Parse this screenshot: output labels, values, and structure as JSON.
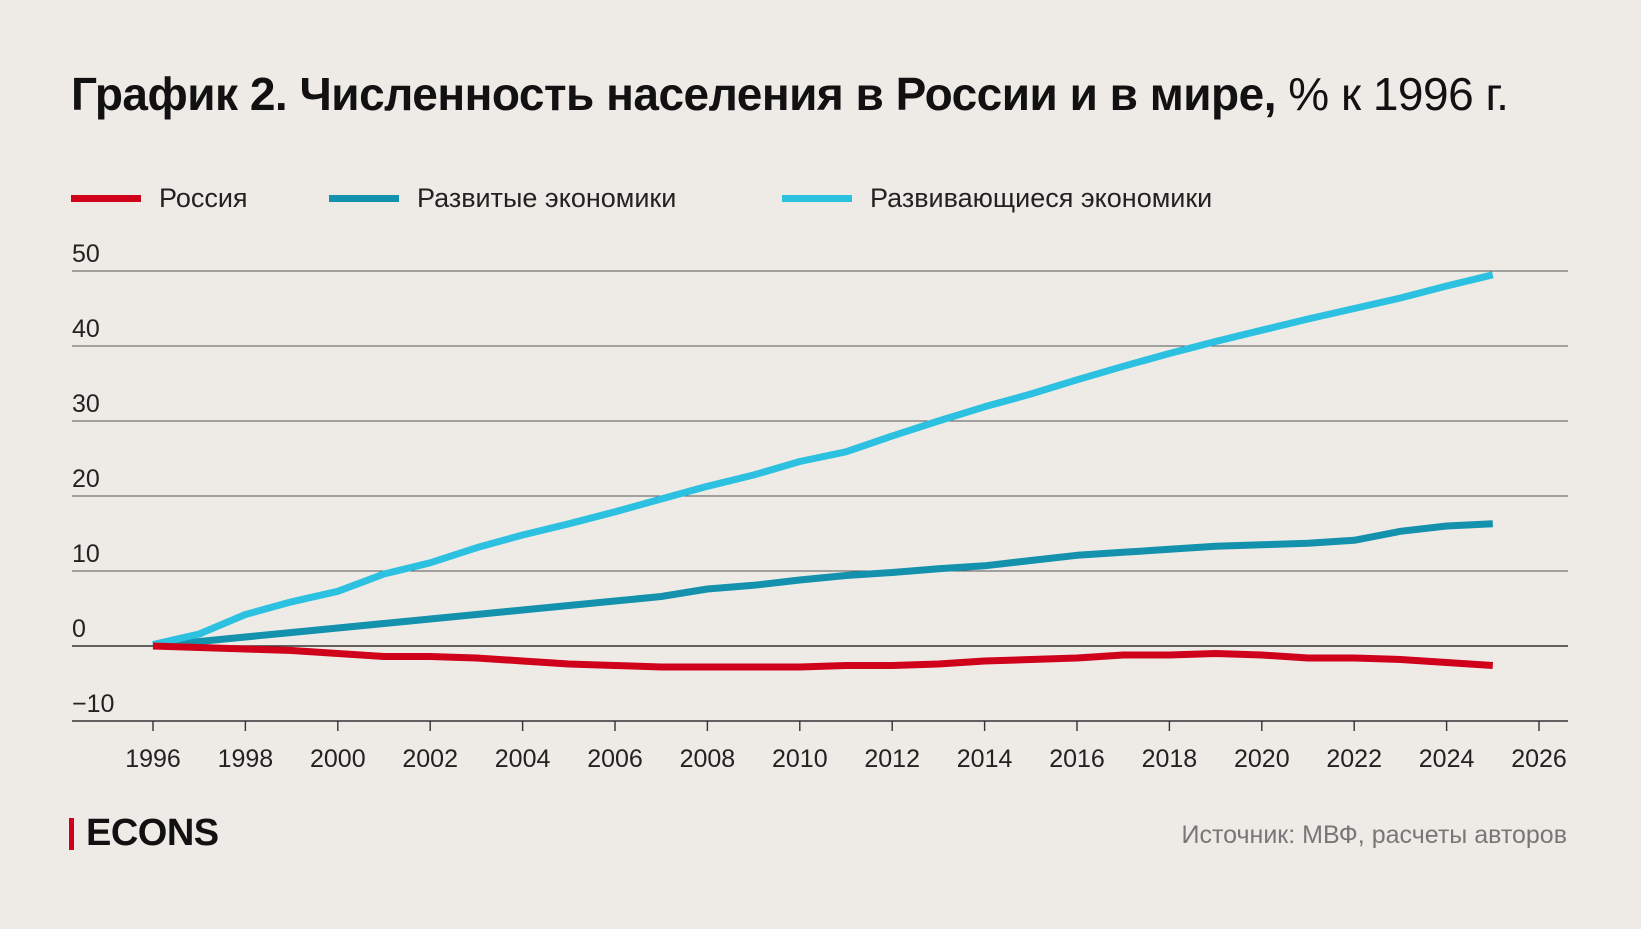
{
  "header": {
    "title_bold": "График 2. Численность населения в России и в мире,",
    "title_unit": " % к 1996 г."
  },
  "footer": {
    "logo_text": "ECONS",
    "source": "Источник: МВФ, расчеты авторов"
  },
  "colors": {
    "background": "#eeebe6",
    "russia": "#d0021b",
    "developed": "#1491ad",
    "developing": "#2cc1e0",
    "grid": "#555555",
    "logo_accent": "#d0021b"
  },
  "chart_data": {
    "type": "line",
    "title": "График 2. Численность населения в России и в мире, % к 1996 г.",
    "xlabel": "",
    "ylabel": "",
    "xlim": [
      1996,
      2026
    ],
    "ylim": [
      -10,
      50
    ],
    "x_ticks": [
      "1996",
      "1998",
      "2000",
      "2002",
      "2004",
      "2006",
      "2008",
      "2010",
      "2012",
      "2014",
      "2016",
      "2018",
      "2020",
      "2022",
      "2024",
      "2026"
    ],
    "y_ticks": [
      "50",
      "40",
      "30",
      "20",
      "10",
      "0",
      "−10"
    ],
    "y_tick_values": [
      50,
      40,
      30,
      20,
      10,
      0,
      -10
    ],
    "grid": true,
    "legend_position": "top-left",
    "x": [
      1996,
      1997,
      1998,
      1999,
      2000,
      2001,
      2002,
      2003,
      2004,
      2005,
      2006,
      2007,
      2008,
      2009,
      2010,
      2011,
      2012,
      2013,
      2014,
      2015,
      2016,
      2017,
      2018,
      2019,
      2020,
      2021,
      2022,
      2023,
      2024,
      2025
    ],
    "series": [
      {
        "name": "Россия",
        "color_key": "russia",
        "values": [
          0,
          -0.2,
          -0.4,
          -0.6,
          -1.0,
          -1.4,
          -1.4,
          -1.6,
          -2.0,
          -2.4,
          -2.6,
          -2.8,
          -2.8,
          -2.8,
          -2.8,
          -2.6,
          -2.6,
          -2.4,
          -2.0,
          -1.8,
          -1.6,
          -1.2,
          -1.2,
          -1.0,
          -1.2,
          -1.6,
          -1.6,
          -1.8,
          -2.2,
          -2.6
        ]
      },
      {
        "name": "Развитые экономики",
        "color_key": "developed",
        "values": [
          0,
          0.6,
          1.2,
          1.8,
          2.4,
          3.0,
          3.6,
          4.2,
          4.8,
          5.4,
          6.0,
          6.6,
          7.6,
          8.1,
          8.8,
          9.4,
          9.8,
          10.3,
          10.7,
          11.4,
          12.1,
          12.5,
          12.9,
          13.3,
          13.5,
          13.7,
          14.1,
          15.3,
          16.0,
          16.3
        ]
      },
      {
        "name": "Развивающиеся экономики",
        "color_key": "developing",
        "values": [
          0.2,
          1.6,
          4.2,
          5.9,
          7.3,
          9.6,
          11.1,
          13.1,
          14.8,
          16.3,
          17.9,
          19.6,
          21.3,
          22.8,
          24.6,
          25.9,
          28.0,
          30.0,
          31.9,
          33.6,
          35.5,
          37.3,
          39.0,
          40.6,
          42.1,
          43.6,
          45.0,
          46.4,
          48.0,
          49.5
        ]
      }
    ]
  }
}
